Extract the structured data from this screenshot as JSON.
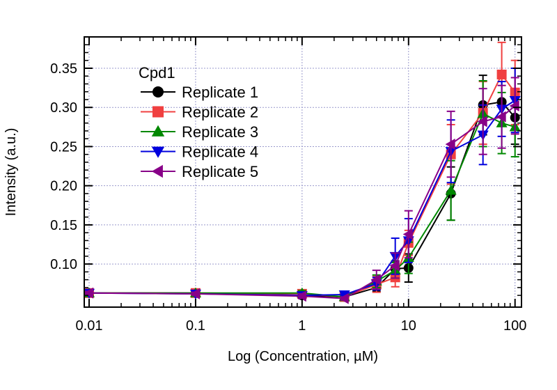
{
  "chart_data": {
    "type": "line",
    "xscale": "log",
    "xlabel": "Log (Concentration, µM)",
    "ylabel": "Intensity (a.u.)",
    "xlim": [
      0.009,
      115
    ],
    "ylim": [
      0.045,
      0.39
    ],
    "x_ticks": [
      0.01,
      0.1,
      1,
      10,
      100
    ],
    "x_tick_labels": [
      "0.01",
      "0.1",
      "1",
      "10",
      "100"
    ],
    "y_ticks": [
      0.1,
      0.15,
      0.2,
      0.25,
      0.3,
      0.35
    ],
    "y_tick_labels": [
      "0.10",
      "0.15",
      "0.20",
      "0.25",
      "0.30",
      "0.35"
    ],
    "grid": true,
    "legend_title": "Cpd1",
    "legend_position": "top-left",
    "x": [
      0.01,
      0.1,
      1,
      2.5,
      5,
      7.5,
      10,
      25,
      50,
      75,
      100
    ],
    "series": [
      {
        "name": "Replicate 1",
        "color": "#000000",
        "marker": "circle",
        "values": [
          0.063,
          0.063,
          0.06,
          0.058,
          0.07,
          0.094,
          0.095,
          0.19,
          0.303,
          0.307,
          0.287
        ],
        "errors": [
          0.002,
          0.002,
          0.003,
          0.002,
          0.005,
          0.01,
          0.018,
          0.034,
          0.038,
          0.03,
          0.034
        ]
      },
      {
        "name": "Replicate 2",
        "color": "#f04040",
        "marker": "square",
        "values": [
          0.063,
          0.063,
          0.062,
          0.058,
          0.074,
          0.083,
          0.127,
          0.24,
          0.293,
          0.342,
          0.319
        ],
        "errors": [
          0.002,
          0.002,
          0.003,
          0.002,
          0.01,
          0.012,
          0.016,
          0.038,
          0.04,
          0.041,
          0.041
        ]
      },
      {
        "name": "Replicate 3",
        "color": "#008800",
        "marker": "triangle-up",
        "values": [
          0.063,
          0.063,
          0.063,
          0.058,
          0.078,
          0.092,
          0.108,
          0.194,
          0.292,
          0.28,
          0.275
        ],
        "errors": [
          0.002,
          0.002,
          0.003,
          0.002,
          0.008,
          0.01,
          0.02,
          0.038,
          0.042,
          0.039,
          0.038
        ]
      },
      {
        "name": "Replicate 4",
        "color": "#0000dd",
        "marker": "triangle-down",
        "values": [
          0.063,
          0.062,
          0.06,
          0.061,
          0.075,
          0.11,
          0.13,
          0.244,
          0.265,
          0.298,
          0.309
        ],
        "errors": [
          0.002,
          0.002,
          0.003,
          0.002,
          0.008,
          0.023,
          0.028,
          0.04,
          0.038,
          0.035,
          0.041
        ]
      },
      {
        "name": "Replicate 5",
        "color": "#880088",
        "marker": "triangle-left",
        "values": [
          0.063,
          0.062,
          0.059,
          0.056,
          0.08,
          0.098,
          0.138,
          0.253,
          0.282,
          0.288,
          0.302
        ],
        "errors": [
          0.002,
          0.002,
          0.003,
          0.002,
          0.012,
          0.016,
          0.03,
          0.042,
          0.042,
          0.04,
          0.036
        ]
      }
    ]
  }
}
